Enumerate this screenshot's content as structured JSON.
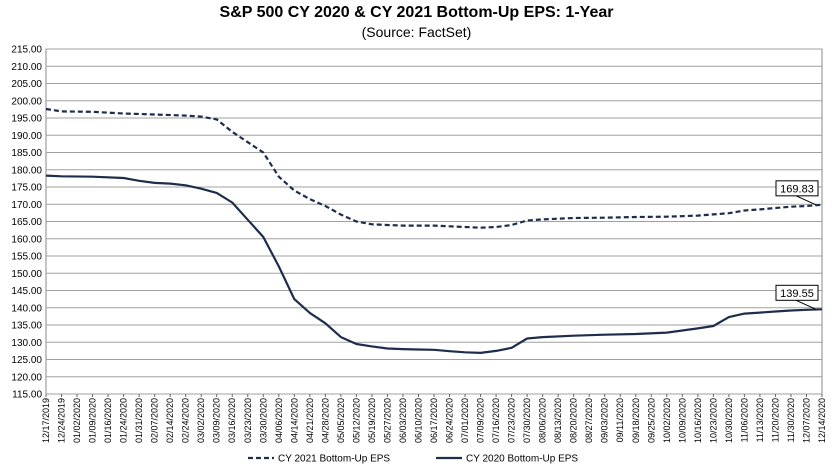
{
  "chart_data": {
    "type": "line",
    "title": "S&P 500 CY 2020 & CY 2021 Bottom-Up  EPS: 1-Year",
    "subtitle": "(Source: FactSet)",
    "ylim": [
      115,
      215
    ],
    "y_ticks": [
      "115.00",
      "120.00",
      "125.00",
      "130.00",
      "135.00",
      "140.00",
      "145.00",
      "150.00",
      "155.00",
      "160.00",
      "165.00",
      "170.00",
      "175.00",
      "180.00",
      "185.00",
      "190.00",
      "195.00",
      "200.00",
      "205.00",
      "210.00",
      "215.00"
    ],
    "x_ticks": [
      "12/17/2019",
      "12/24/2019",
      "01/02/2020",
      "01/09/2020",
      "01/16/2020",
      "01/24/2020",
      "01/31/2020",
      "02/07/2020",
      "02/14/2020",
      "02/24/2020",
      "03/02/2020",
      "03/09/2020",
      "03/16/2020",
      "03/23/2020",
      "03/30/2020",
      "04/06/2020",
      "04/14/2020",
      "04/21/2020",
      "04/28/2020",
      "05/05/2020",
      "05/12/2020",
      "05/19/2020",
      "05/27/2020",
      "06/03/2020",
      "06/10/2020",
      "06/17/2020",
      "06/24/2020",
      "07/01/2020",
      "07/09/2020",
      "07/16/2020",
      "07/23/2020",
      "07/30/2020",
      "08/06/2020",
      "08/13/2020",
      "08/20/2020",
      "08/27/2020",
      "09/03/2020",
      "09/11/2020",
      "09/18/2020",
      "09/25/2020",
      "10/02/2020",
      "10/09/2020",
      "10/16/2020",
      "10/23/2020",
      "10/30/2020",
      "11/06/2020",
      "11/13/2020",
      "11/20/2020",
      "11/30/2020",
      "12/07/2020",
      "12/14/2020"
    ],
    "series": [
      {
        "name": "CY 2021 Bottom-Up EPS",
        "style": "dashed",
        "color": "#1f2d4d",
        "end_label": "169.83",
        "points": [
          [
            0,
            197.6
          ],
          [
            1,
            196.9
          ],
          [
            3,
            196.8
          ],
          [
            5,
            196.3
          ],
          [
            7,
            196.0
          ],
          [
            9,
            195.7
          ],
          [
            10,
            195.4
          ],
          [
            11,
            194.6
          ],
          [
            12,
            191.0
          ],
          [
            13,
            188.0
          ],
          [
            14,
            185.0
          ],
          [
            15,
            178.0
          ],
          [
            16,
            174.0
          ],
          [
            17,
            171.5
          ],
          [
            18,
            169.5
          ],
          [
            19,
            167.0
          ],
          [
            20,
            165.0
          ],
          [
            21,
            164.2
          ],
          [
            22,
            164.0
          ],
          [
            23,
            163.8
          ],
          [
            24,
            163.8
          ],
          [
            25,
            163.8
          ],
          [
            26,
            163.6
          ],
          [
            27,
            163.4
          ],
          [
            28,
            163.2
          ],
          [
            29,
            163.4
          ],
          [
            30,
            164.0
          ],
          [
            31,
            165.3
          ],
          [
            32,
            165.6
          ],
          [
            34,
            166.0
          ],
          [
            36,
            166.1
          ],
          [
            38,
            166.3
          ],
          [
            40,
            166.4
          ],
          [
            42,
            166.7
          ],
          [
            44,
            167.4
          ],
          [
            45,
            168.2
          ],
          [
            46,
            168.5
          ],
          [
            47,
            168.9
          ],
          [
            48,
            169.3
          ],
          [
            49,
            169.5
          ],
          [
            50,
            169.83
          ]
        ]
      },
      {
        "name": "CY 2020 Bottom-Up EPS",
        "style": "solid",
        "color": "#1f2d4d",
        "end_label": "139.55",
        "points": [
          [
            0,
            178.3
          ],
          [
            1,
            178.1
          ],
          [
            3,
            178.0
          ],
          [
            5,
            177.6
          ],
          [
            6,
            176.8
          ],
          [
            7,
            176.2
          ],
          [
            8,
            176.0
          ],
          [
            9,
            175.5
          ],
          [
            10,
            174.5
          ],
          [
            11,
            173.3
          ],
          [
            12,
            170.5
          ],
          [
            13,
            165.5
          ],
          [
            14,
            160.5
          ],
          [
            15,
            152.0
          ],
          [
            16,
            142.5
          ],
          [
            17,
            138.5
          ],
          [
            18,
            135.5
          ],
          [
            19,
            131.5
          ],
          [
            20,
            129.5
          ],
          [
            21,
            128.8
          ],
          [
            22,
            128.2
          ],
          [
            23,
            128.0
          ],
          [
            24,
            127.9
          ],
          [
            25,
            127.8
          ],
          [
            26,
            127.4
          ],
          [
            27,
            127.1
          ],
          [
            28,
            126.9
          ],
          [
            29,
            127.5
          ],
          [
            30,
            128.4
          ],
          [
            31,
            131.1
          ],
          [
            32,
            131.5
          ],
          [
            34,
            131.9
          ],
          [
            36,
            132.2
          ],
          [
            38,
            132.4
          ],
          [
            40,
            132.8
          ],
          [
            41,
            133.4
          ],
          [
            42,
            134.0
          ],
          [
            43,
            134.7
          ],
          [
            44,
            137.3
          ],
          [
            45,
            138.3
          ],
          [
            46,
            138.6
          ],
          [
            47,
            138.9
          ],
          [
            48,
            139.2
          ],
          [
            49,
            139.4
          ],
          [
            50,
            139.55
          ]
        ]
      }
    ],
    "legend": {
      "placement": "bottom"
    }
  }
}
